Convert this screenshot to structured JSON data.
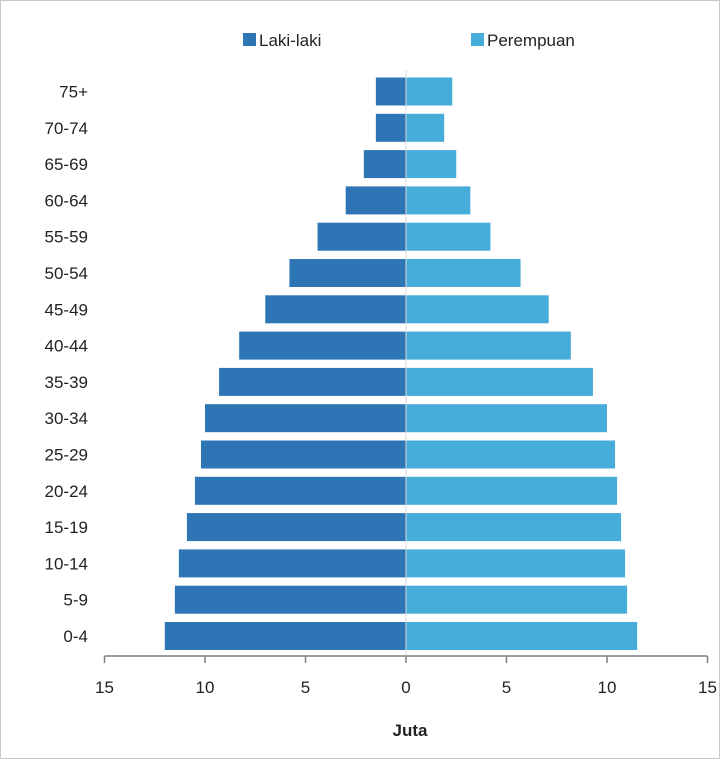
{
  "chart_data": {
    "type": "bar",
    "orientation": "horizontal-diverging",
    "categories": [
      "0-4",
      "5-9",
      "10-14",
      "15-19",
      "20-24",
      "25-29",
      "30-34",
      "35-39",
      "40-44",
      "45-49",
      "50-54",
      "55-59",
      "60-64",
      "65-69",
      "70-74",
      "75+"
    ],
    "series": [
      {
        "name": "Laki-laki",
        "color": "#2e75b6",
        "values": [
          12.0,
          11.5,
          11.3,
          10.9,
          10.5,
          10.2,
          10.0,
          9.3,
          8.3,
          7.0,
          5.8,
          4.4,
          3.0,
          2.1,
          1.5,
          1.5
        ]
      },
      {
        "name": "Perempuan",
        "color": "#46acd9",
        "values": [
          11.5,
          11.0,
          10.9,
          10.7,
          10.5,
          10.4,
          10.0,
          9.3,
          8.2,
          7.1,
          5.7,
          4.2,
          3.2,
          2.5,
          1.9,
          2.3
        ]
      }
    ],
    "xlabel": "Juta",
    "xticks": [
      "15",
      "10",
      "5",
      "0",
      "5",
      "10",
      "15"
    ],
    "xlim": [
      -15,
      15
    ],
    "legend_position": "top",
    "grid": false
  }
}
